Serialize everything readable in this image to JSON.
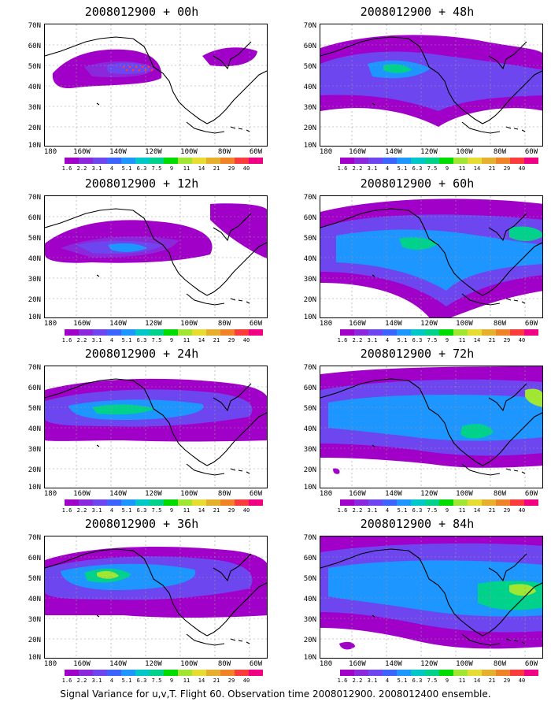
{
  "panels": [
    {
      "title": "2008012900 + 00h"
    },
    {
      "title": "2008012900 + 48h"
    },
    {
      "title": "2008012900 + 12h"
    },
    {
      "title": "2008012900 + 60h"
    },
    {
      "title": "2008012900 + 24h"
    },
    {
      "title": "2008012900 + 72h"
    },
    {
      "title": "2008012900 + 36h"
    },
    {
      "title": "2008012900 + 84h"
    }
  ],
  "lat_labels": [
    "70N",
    "60N",
    "50N",
    "40N",
    "30N",
    "20N",
    "10N"
  ],
  "lon_labels": [
    "180",
    "160W",
    "140W",
    "120W",
    "100W",
    "80W",
    "60W"
  ],
  "colorbar": {
    "levels": [
      "1.6",
      "2.2",
      "3.1",
      "4",
      "5.1",
      "6.3",
      "7.5",
      "9",
      "11",
      "14",
      "21",
      "29",
      "40"
    ],
    "colors": [
      "#a000c8",
      "#8c28dc",
      "#6e46f0",
      "#3c64ff",
      "#1e96ff",
      "#00c8c8",
      "#00d28c",
      "#00dc00",
      "#a0e632",
      "#e6dc32",
      "#e6af2d",
      "#f08228",
      "#fa3c3c",
      "#f00082"
    ]
  },
  "caption": "Signal Variance for u,v,T. Flight 60. Observation time 2008012900. 2008012400 ensemble."
}
